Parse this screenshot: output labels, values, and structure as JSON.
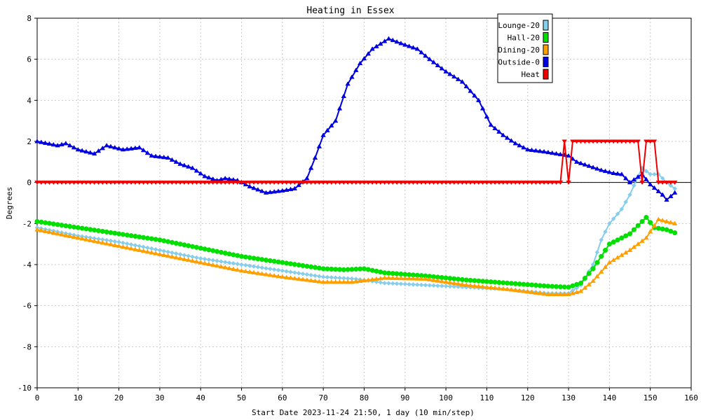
{
  "chart_data": {
    "type": "line",
    "title": "Heating in Essex",
    "xlabel": "Start Date 2023-11-24 21:50, 1 day (10 min/step)",
    "ylabel": "Degrees",
    "xlim": [
      0,
      160
    ],
    "ylim": [
      -10,
      8
    ],
    "x_ticks": [
      0,
      10,
      20,
      30,
      40,
      50,
      60,
      70,
      80,
      90,
      100,
      110,
      120,
      130,
      140,
      150,
      160
    ],
    "y_ticks": [
      -10,
      -8,
      -6,
      -4,
      -2,
      0,
      2,
      4,
      6,
      8
    ],
    "grid": true,
    "legend_position": "top-right",
    "series": [
      {
        "name": "Lounge-20",
        "color": "#87ceeb",
        "marker": "diamond",
        "points": [
          [
            0,
            -2.2
          ],
          [
            10,
            -2.6
          ],
          [
            20,
            -2.9
          ],
          [
            30,
            -3.3
          ],
          [
            40,
            -3.7
          ],
          [
            50,
            -4.0
          ],
          [
            60,
            -4.3
          ],
          [
            70,
            -4.6
          ],
          [
            78,
            -4.7
          ],
          [
            85,
            -4.9
          ],
          [
            95,
            -5.0
          ],
          [
            105,
            -5.1
          ],
          [
            115,
            -5.2
          ],
          [
            125,
            -5.4
          ],
          [
            130,
            -5.4
          ],
          [
            133,
            -5.0
          ],
          [
            136,
            -4.0
          ],
          [
            138,
            -2.8
          ],
          [
            140,
            -2.0
          ],
          [
            143,
            -1.3
          ],
          [
            145,
            -0.6
          ],
          [
            147,
            0.3
          ],
          [
            148,
            0.7
          ],
          [
            150,
            0.4
          ],
          [
            152,
            0.4
          ],
          [
            154,
            0.0
          ],
          [
            156,
            -0.3
          ]
        ]
      },
      {
        "name": "Hall-20",
        "color": "#00e000",
        "marker": "circle",
        "points": [
          [
            0,
            -1.9
          ],
          [
            10,
            -2.2
          ],
          [
            20,
            -2.5
          ],
          [
            30,
            -2.8
          ],
          [
            40,
            -3.2
          ],
          [
            50,
            -3.6
          ],
          [
            60,
            -3.9
          ],
          [
            70,
            -4.2
          ],
          [
            75,
            -4.25
          ],
          [
            80,
            -4.2
          ],
          [
            85,
            -4.4
          ],
          [
            95,
            -4.55
          ],
          [
            105,
            -4.75
          ],
          [
            115,
            -4.9
          ],
          [
            125,
            -5.05
          ],
          [
            130,
            -5.1
          ],
          [
            133,
            -4.9
          ],
          [
            136,
            -4.2
          ],
          [
            140,
            -3.0
          ],
          [
            145,
            -2.5
          ],
          [
            149,
            -1.7
          ],
          [
            151,
            -2.2
          ],
          [
            154,
            -2.3
          ],
          [
            156,
            -2.45
          ]
        ]
      },
      {
        "name": "Dining-20",
        "color": "#ffa000",
        "marker": "triangle-up",
        "points": [
          [
            0,
            -2.3
          ],
          [
            10,
            -2.7
          ],
          [
            20,
            -3.1
          ],
          [
            30,
            -3.5
          ],
          [
            40,
            -3.9
          ],
          [
            50,
            -4.3
          ],
          [
            60,
            -4.6
          ],
          [
            70,
            -4.85
          ],
          [
            77,
            -4.85
          ],
          [
            85,
            -4.65
          ],
          [
            95,
            -4.7
          ],
          [
            105,
            -5.0
          ],
          [
            115,
            -5.2
          ],
          [
            125,
            -5.45
          ],
          [
            130,
            -5.45
          ],
          [
            133,
            -5.3
          ],
          [
            136,
            -4.8
          ],
          [
            140,
            -3.9
          ],
          [
            145,
            -3.3
          ],
          [
            149,
            -2.7
          ],
          [
            152,
            -1.8
          ],
          [
            156,
            -2.0
          ]
        ]
      },
      {
        "name": "Outside-0",
        "color": "#0000e0",
        "marker": "triangle-up",
        "points": [
          [
            0,
            2.0
          ],
          [
            5,
            1.8
          ],
          [
            7,
            1.9
          ],
          [
            10,
            1.6
          ],
          [
            14,
            1.4
          ],
          [
            17,
            1.8
          ],
          [
            21,
            1.6
          ],
          [
            25,
            1.7
          ],
          [
            28,
            1.3
          ],
          [
            32,
            1.2
          ],
          [
            35,
            0.9
          ],
          [
            38,
            0.7
          ],
          [
            41,
            0.3
          ],
          [
            44,
            0.1
          ],
          [
            46,
            0.2
          ],
          [
            49,
            0.1
          ],
          [
            52,
            -0.2
          ],
          [
            56,
            -0.5
          ],
          [
            60,
            -0.4
          ],
          [
            63,
            -0.3
          ],
          [
            66,
            0.2
          ],
          [
            68,
            1.2
          ],
          [
            70,
            2.3
          ],
          [
            73,
            3.0
          ],
          [
            76,
            4.8
          ],
          [
            79,
            5.8
          ],
          [
            82,
            6.5
          ],
          [
            86,
            7.0
          ],
          [
            90,
            6.7
          ],
          [
            93,
            6.5
          ],
          [
            96,
            6.0
          ],
          [
            100,
            5.4
          ],
          [
            104,
            4.9
          ],
          [
            108,
            4.0
          ],
          [
            111,
            2.8
          ],
          [
            114,
            2.3
          ],
          [
            117,
            1.9
          ],
          [
            120,
            1.6
          ],
          [
            124,
            1.5
          ],
          [
            127,
            1.4
          ],
          [
            130,
            1.3
          ],
          [
            132,
            1.0
          ],
          [
            135,
            0.8
          ],
          [
            138,
            0.6
          ],
          [
            141,
            0.45
          ],
          [
            143,
            0.4
          ],
          [
            145,
            0.0
          ],
          [
            148,
            0.4
          ],
          [
            150,
            -0.1
          ],
          [
            153,
            -0.6
          ],
          [
            154,
            -0.85
          ],
          [
            156,
            -0.5
          ]
        ]
      },
      {
        "name": "Heat",
        "color": "#ee0000",
        "marker": "triangle-down",
        "points": [
          [
            0,
            0
          ],
          [
            128,
            0
          ],
          [
            129,
            2
          ],
          [
            130,
            0
          ],
          [
            131,
            2
          ],
          [
            147,
            2
          ],
          [
            148,
            0
          ],
          [
            149,
            2
          ],
          [
            151,
            2
          ],
          [
            152,
            0
          ],
          [
            156,
            0
          ]
        ]
      }
    ]
  }
}
